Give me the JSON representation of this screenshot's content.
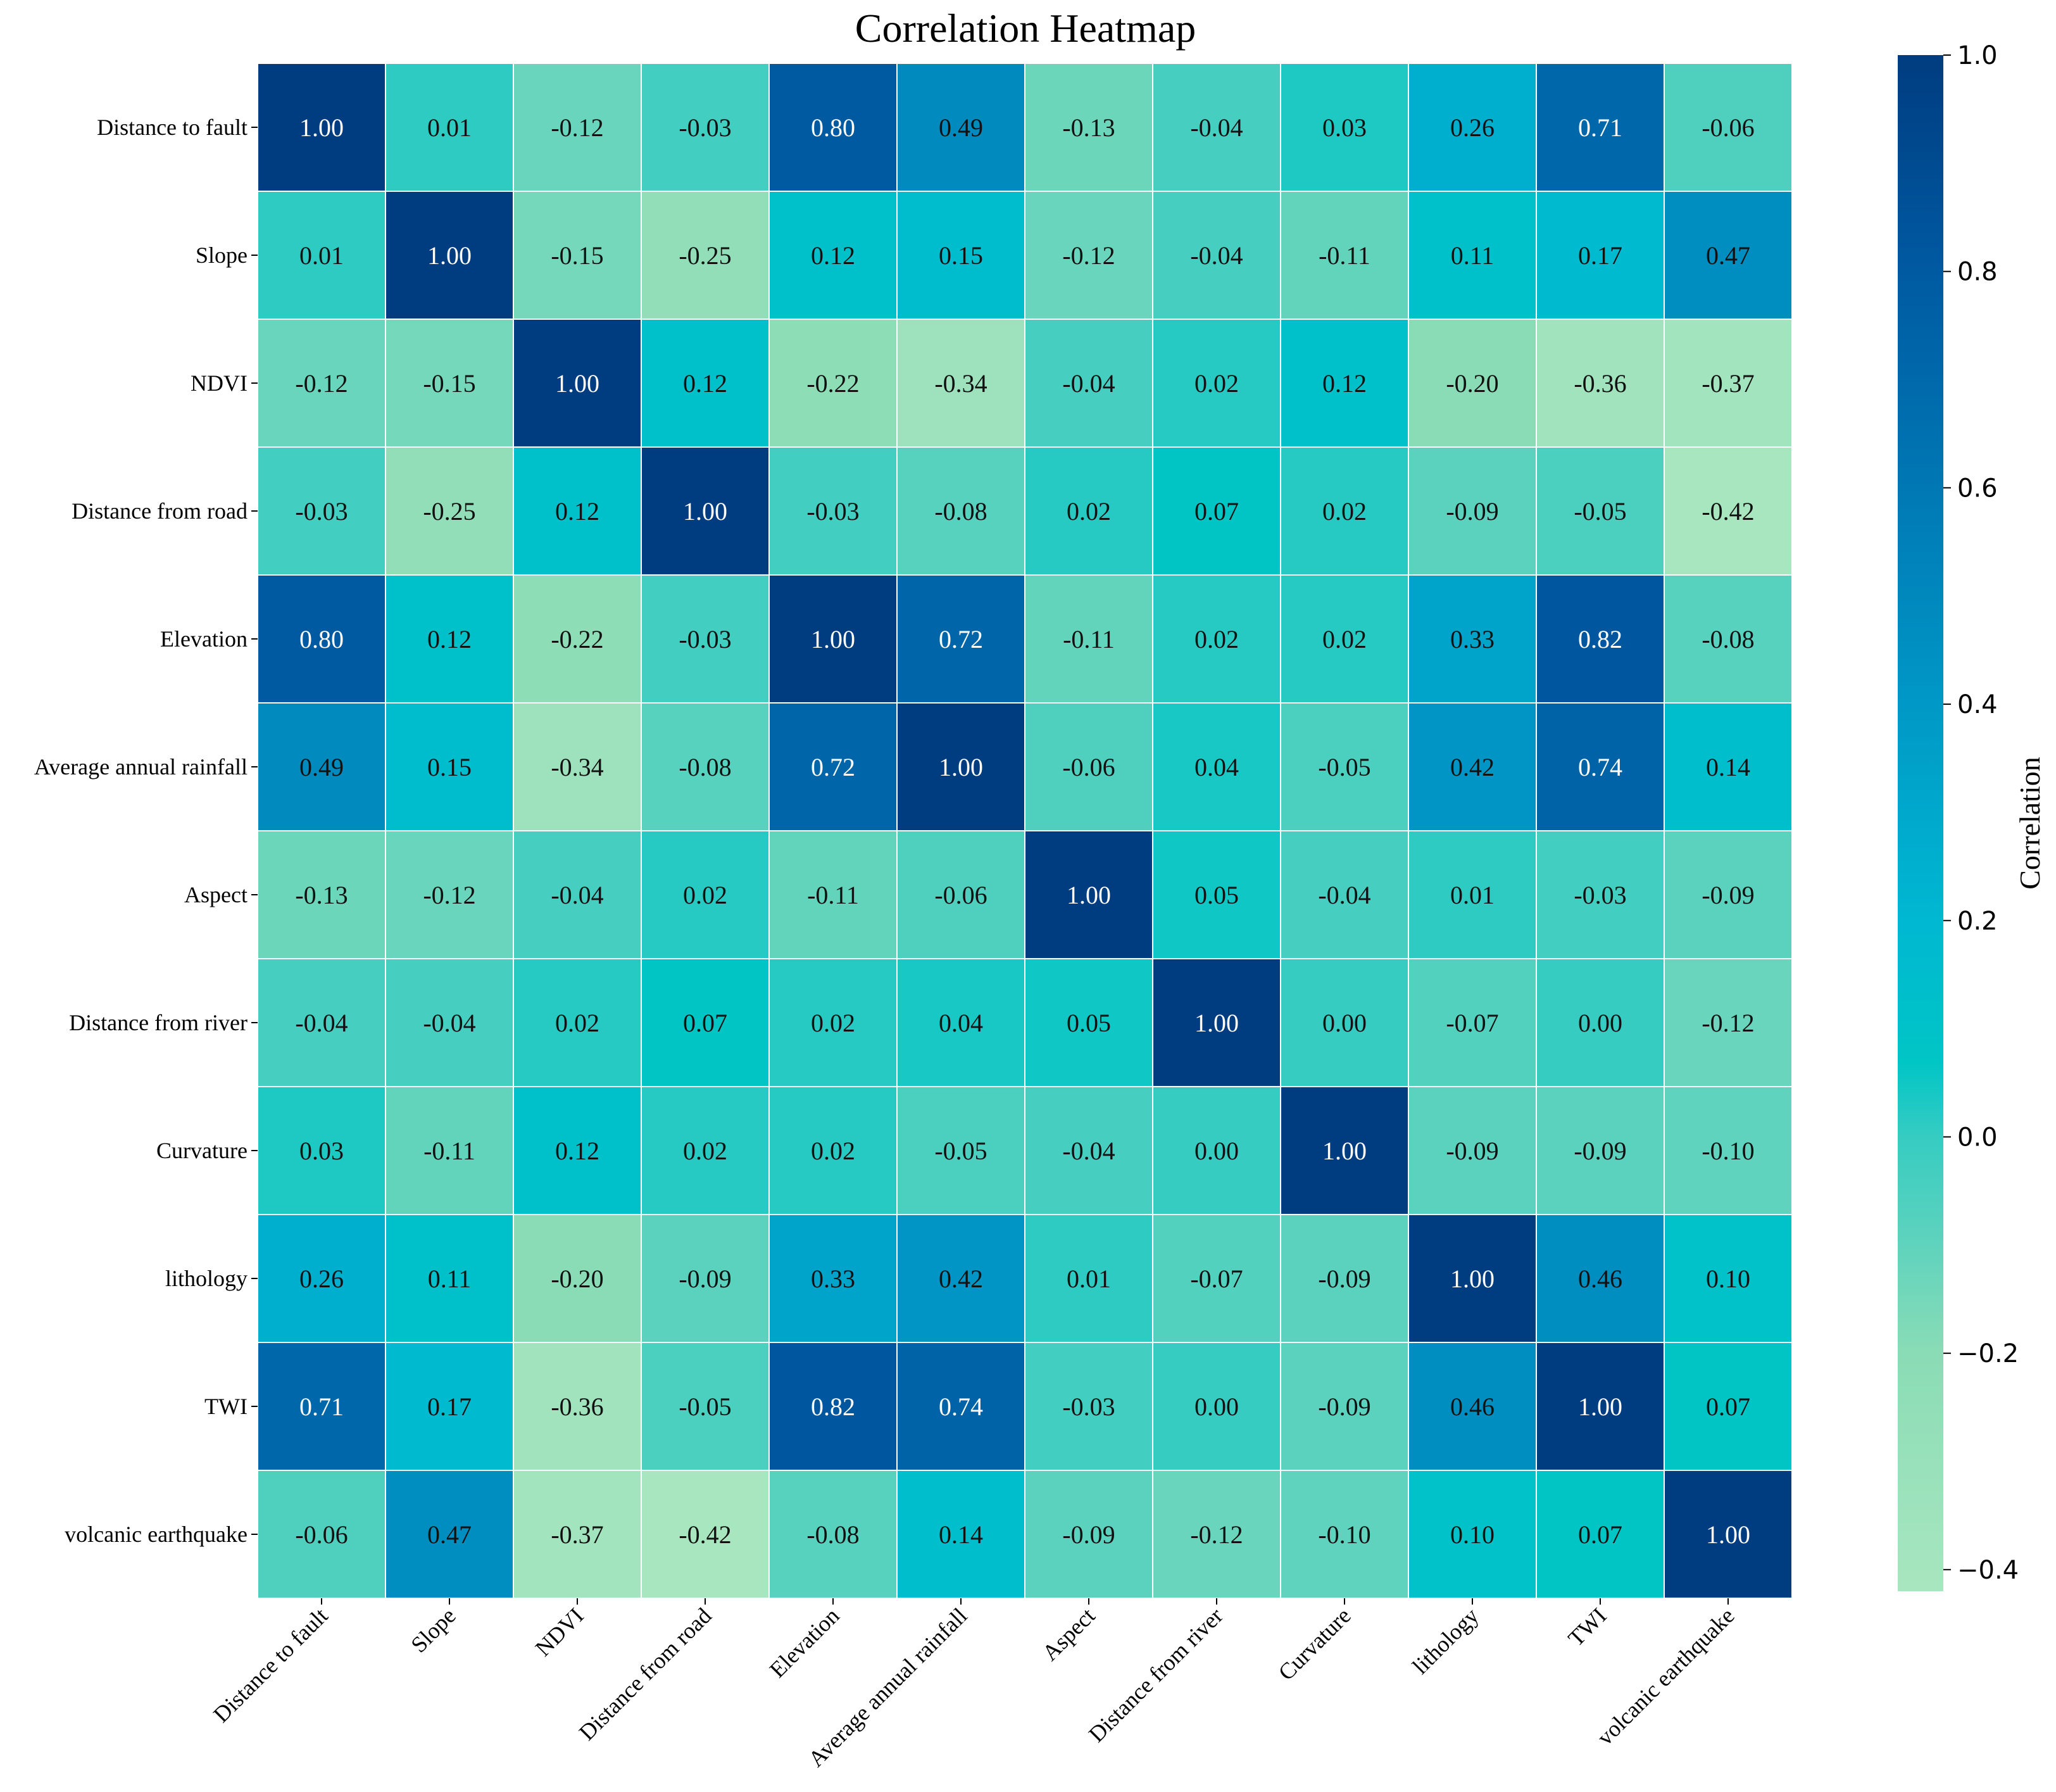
{
  "chart_data": {
    "type": "heatmap",
    "title": "Correlation Heatmap",
    "labels": [
      "Distance to fault",
      "Slope",
      "NDVI",
      "Distance from road",
      "Elevation",
      "Average annual rainfall",
      "Aspect",
      "Distance from river",
      "Curvature",
      "lithology",
      "TWI",
      "volcanic earthquake"
    ],
    "values": [
      [
        1.0,
        0.01,
        -0.12,
        -0.03,
        0.8,
        0.49,
        -0.13,
        -0.04,
        0.03,
        0.26,
        0.71,
        -0.06
      ],
      [
        0.01,
        1.0,
        -0.15,
        -0.25,
        0.12,
        0.15,
        -0.12,
        -0.04,
        -0.11,
        0.11,
        0.17,
        0.47
      ],
      [
        -0.12,
        -0.15,
        1.0,
        0.12,
        -0.22,
        -0.34,
        -0.04,
        0.02,
        0.12,
        -0.2,
        -0.36,
        -0.37
      ],
      [
        -0.03,
        -0.25,
        0.12,
        1.0,
        -0.03,
        -0.08,
        0.02,
        0.07,
        0.02,
        -0.09,
        -0.05,
        -0.42
      ],
      [
        0.8,
        0.12,
        -0.22,
        -0.03,
        1.0,
        0.72,
        -0.11,
        0.02,
        0.02,
        0.33,
        0.82,
        -0.08
      ],
      [
        0.49,
        0.15,
        -0.34,
        -0.08,
        0.72,
        1.0,
        -0.06,
        0.04,
        -0.05,
        0.42,
        0.74,
        0.14
      ],
      [
        -0.13,
        -0.12,
        -0.04,
        0.02,
        -0.11,
        -0.06,
        1.0,
        0.05,
        -0.04,
        0.01,
        -0.03,
        -0.09
      ],
      [
        -0.04,
        -0.04,
        0.02,
        0.07,
        0.02,
        0.04,
        0.05,
        1.0,
        -0.0,
        -0.07,
        -0.0,
        -0.12
      ],
      [
        0.03,
        -0.11,
        0.12,
        0.02,
        0.02,
        -0.05,
        -0.04,
        -0.0,
        1.0,
        -0.09,
        -0.09,
        -0.1
      ],
      [
        0.26,
        0.11,
        -0.2,
        -0.09,
        0.33,
        0.42,
        0.01,
        -0.07,
        -0.09,
        1.0,
        0.46,
        0.1
      ],
      [
        0.71,
        0.17,
        -0.36,
        -0.05,
        0.82,
        0.74,
        -0.03,
        -0.0,
        -0.09,
        0.46,
        1.0,
        0.07
      ],
      [
        -0.06,
        0.47,
        -0.37,
        -0.42,
        -0.08,
        0.14,
        -0.09,
        -0.12,
        -0.1,
        0.1,
        0.07,
        1.0
      ]
    ],
    "colorbar": {
      "label": "Correlation",
      "range": [
        -0.42,
        1.0
      ],
      "ticks": [
        "1.0",
        "0.8",
        "0.6",
        "0.4",
        "0.2",
        "0.0",
        "−0.2",
        "−0.4"
      ],
      "tick_values": [
        1.0,
        0.8,
        0.6,
        0.4,
        0.2,
        0.0,
        -0.2,
        -0.4
      ],
      "colormap": [
        {
          "v": -0.42,
          "color": "#a8e6bf"
        },
        {
          "v": -0.2,
          "color": "#8adcb6"
        },
        {
          "v": -0.1,
          "color": "#5fd3bd"
        },
        {
          "v": 0.0,
          "color": "#36ccc2"
        },
        {
          "v": 0.07,
          "color": "#00c5c5"
        },
        {
          "v": 0.2,
          "color": "#00b8d2"
        },
        {
          "v": 0.4,
          "color": "#0098c6"
        },
        {
          "v": 0.6,
          "color": "#0078b4"
        },
        {
          "v": 0.8,
          "color": "#005aa2"
        },
        {
          "v": 1.0,
          "color": "#003c80"
        }
      ]
    },
    "grid_lines": true,
    "annotations": true
  }
}
